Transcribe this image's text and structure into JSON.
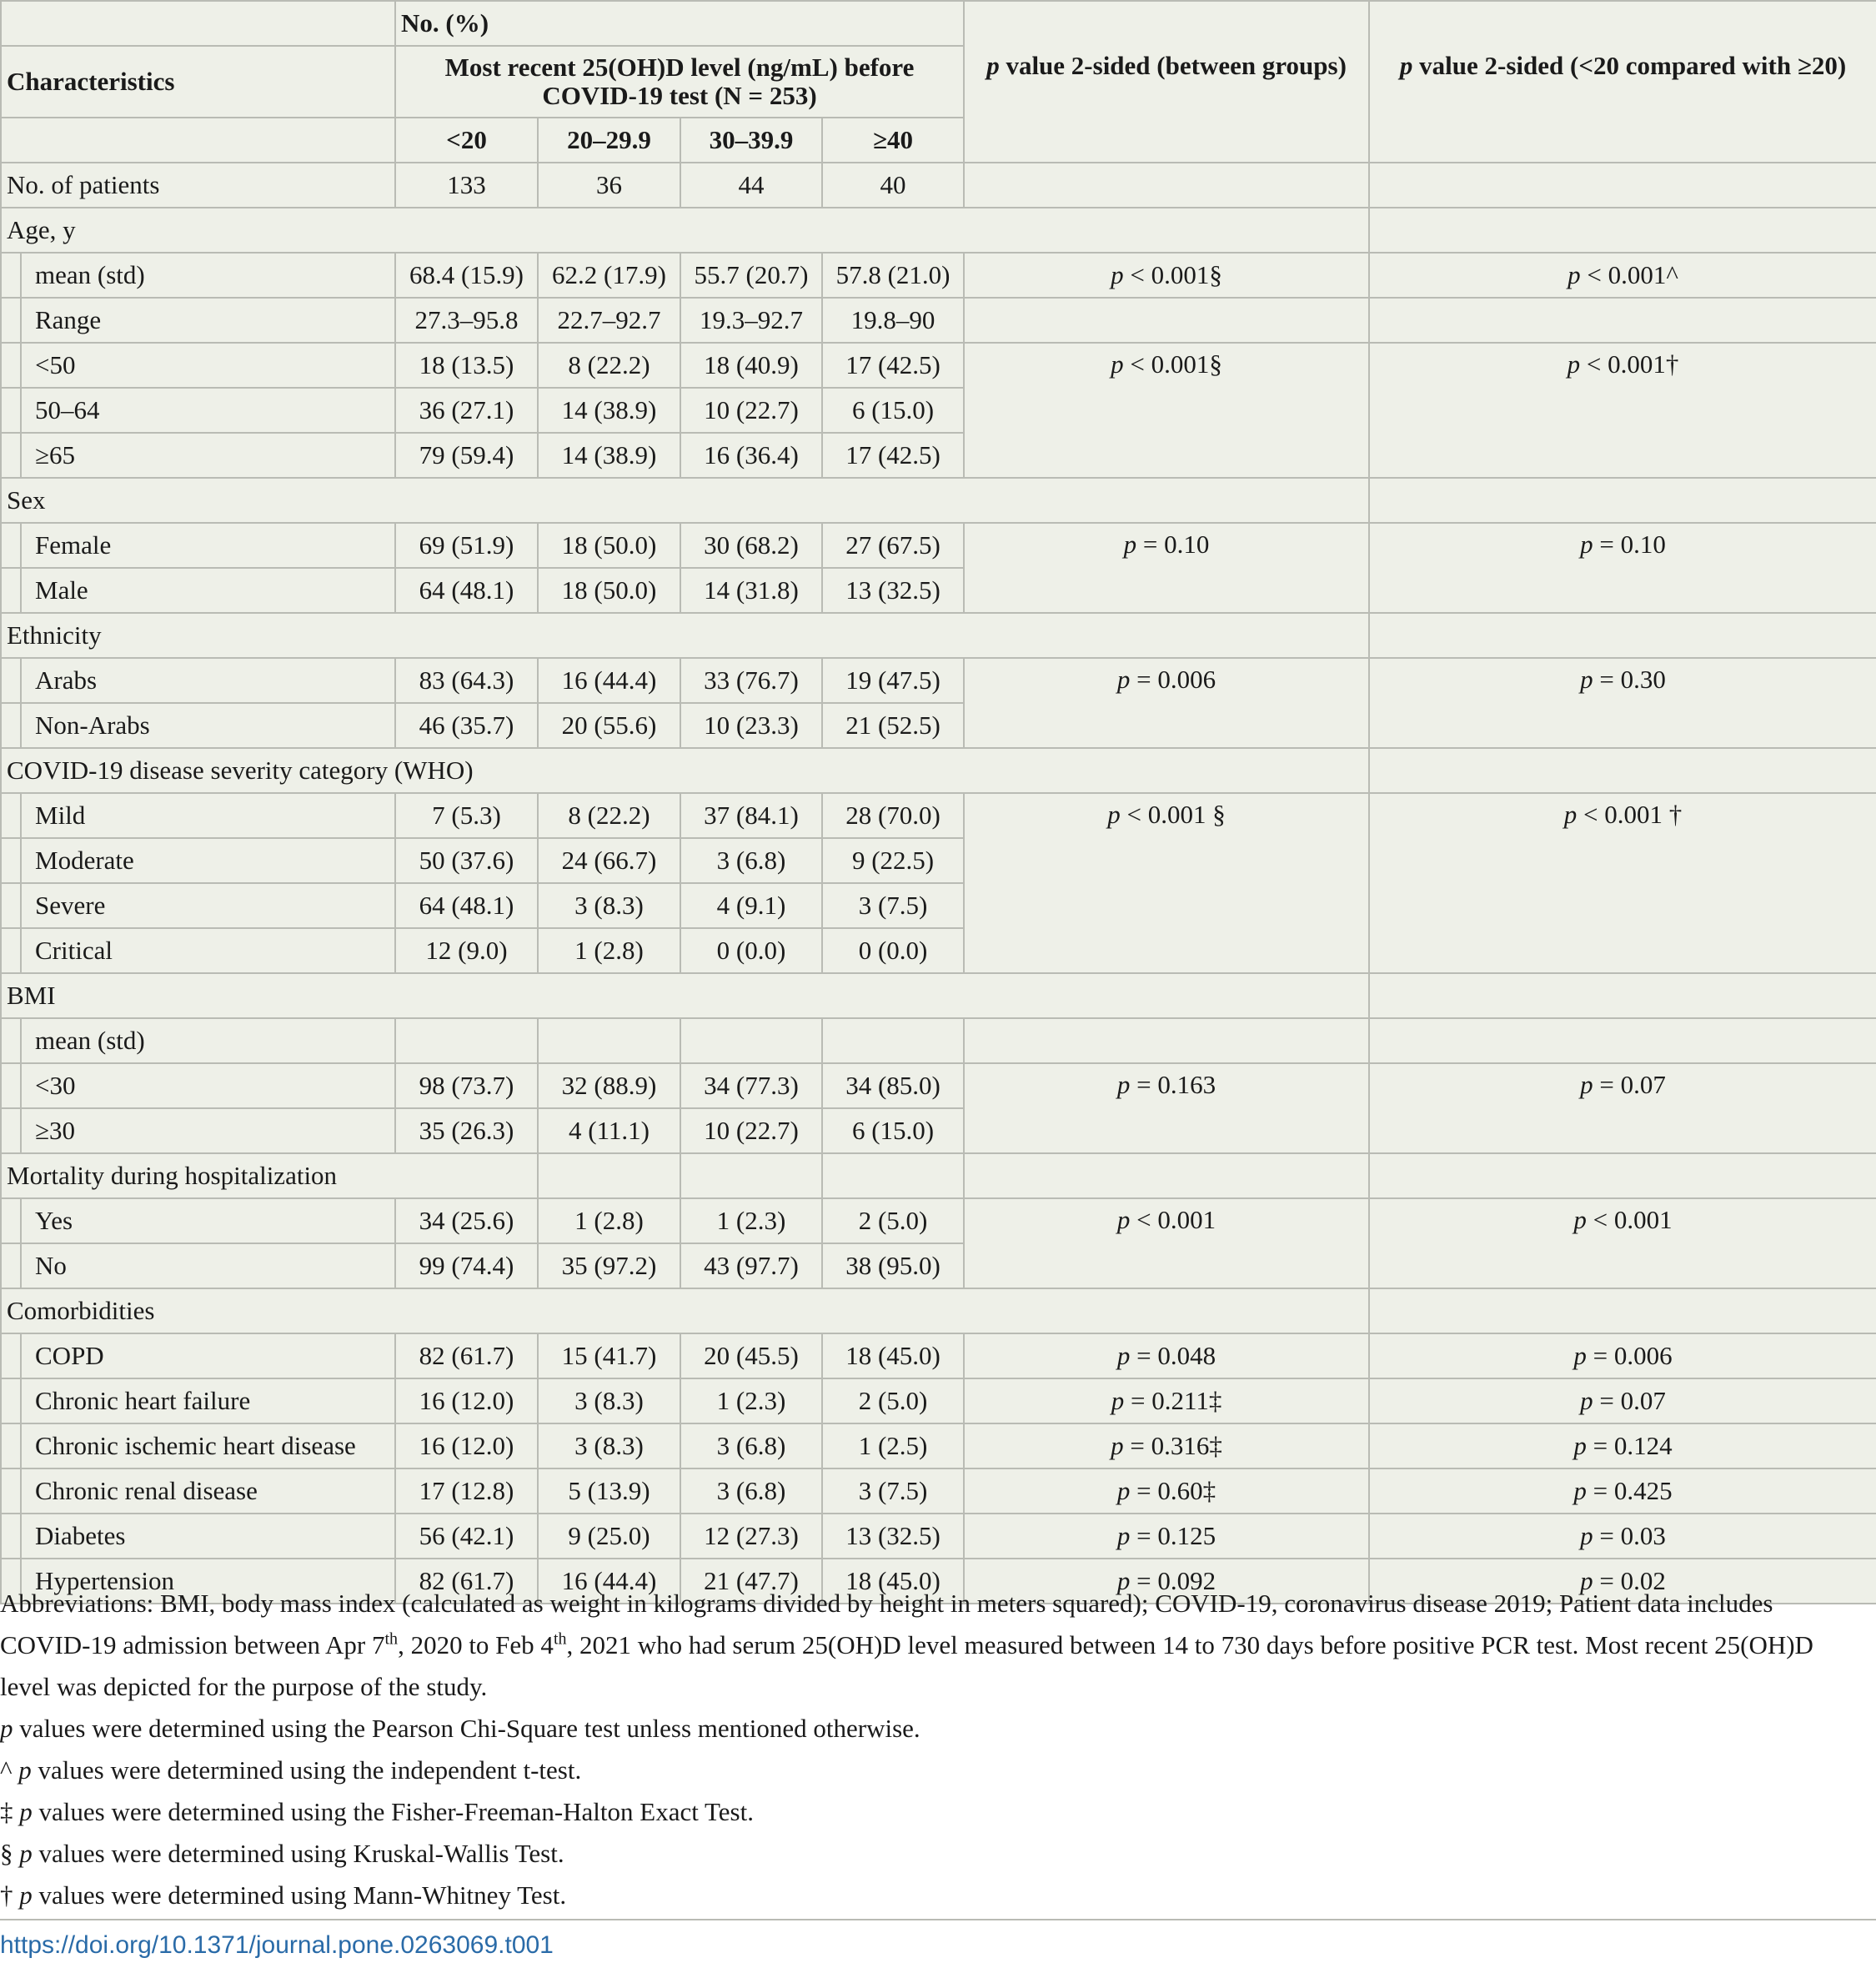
{
  "header": {
    "no_pct": "No. (%)",
    "characteristics": "Characteristics",
    "group_title": "Most recent 25(OH)D level (ng/mL) before COVID-19 test (N = 253)",
    "p_between_italic": "p",
    "p_between_rest": " value 2-sided (between groups)",
    "p_lt20_italic": "p",
    "p_lt20_rest": " value 2-sided (<20 compared with ≥20)",
    "levels": [
      "<20",
      "20–29.9",
      "30–39.9",
      "≥40"
    ]
  },
  "table": {
    "no_patients": {
      "label": "No. of patients",
      "values": [
        "133",
        "36",
        "44",
        "40"
      ]
    },
    "age": {
      "label": "Age, y",
      "rows": [
        {
          "label": "mean (std)",
          "values": [
            "68.4 (15.9)",
            "62.2 (17.9)",
            "55.7 (20.7)",
            "57.8 (21.0)"
          ]
        },
        {
          "label": "Range",
          "values": [
            "27.3–95.8",
            "22.7–92.7",
            "19.3–92.7",
            "19.8–90"
          ]
        },
        {
          "label": "<50",
          "values": [
            "18 (13.5)",
            "8 (22.2)",
            "18 (40.9)",
            "17 (42.5)"
          ]
        },
        {
          "label": "50–64",
          "values": [
            "36 (27.1)",
            "14 (38.9)",
            "10 (22.7)",
            "6 (15.0)"
          ]
        },
        {
          "label": "≥65",
          "values": [
            "79 (59.4)",
            "14 (38.9)",
            "16 (36.4)",
            "17 (42.5)"
          ]
        }
      ],
      "p_mean_between": "p < 0.001§",
      "p_mean_lt20": "p < 0.001^",
      "p_cat_between": "p < 0.001§",
      "p_cat_lt20": "p < 0.001†"
    },
    "sex": {
      "label": "Sex",
      "rows": [
        {
          "label": "Female",
          "values": [
            "69 (51.9)",
            "18 (50.0)",
            "30 (68.2)",
            "27 (67.5)"
          ]
        },
        {
          "label": "Male",
          "values": [
            "64 (48.1)",
            "18 (50.0)",
            "14 (31.8)",
            "13 (32.5)"
          ]
        }
      ],
      "p_between": "p = 0.10",
      "p_lt20": "p = 0.10"
    },
    "ethnicity": {
      "label": "Ethnicity",
      "rows": [
        {
          "label": "Arabs",
          "values": [
            "83 (64.3)",
            "16 (44.4)",
            "33 (76.7)",
            "19 (47.5)"
          ]
        },
        {
          "label": "Non-Arabs",
          "values": [
            "46 (35.7)",
            "20 (55.6)",
            "10 (23.3)",
            "21 (52.5)"
          ]
        }
      ],
      "p_between": "p = 0.006",
      "p_lt20": "p = 0.30"
    },
    "severity": {
      "label": "COVID-19 disease severity category (WHO)",
      "rows": [
        {
          "label": "Mild",
          "values": [
            "7 (5.3)",
            "8 (22.2)",
            "37 (84.1)",
            "28 (70.0)"
          ]
        },
        {
          "label": "Moderate",
          "values": [
            "50 (37.6)",
            "24 (66.7)",
            "3 (6.8)",
            "9 (22.5)"
          ]
        },
        {
          "label": "Severe",
          "values": [
            "64 (48.1)",
            "3 (8.3)",
            "4 (9.1)",
            "3 (7.5)"
          ]
        },
        {
          "label": "Critical",
          "values": [
            "12 (9.0)",
            "1 (2.8)",
            "0 (0.0)",
            "0 (0.0)"
          ]
        }
      ],
      "p_between": "p < 0.001 §",
      "p_lt20": "p < 0.001 †"
    },
    "bmi": {
      "label": "BMI",
      "mean_label": "mean (std)",
      "rows": [
        {
          "label": "<30",
          "values": [
            "98 (73.7)",
            "32 (88.9)",
            "34 (77.3)",
            "34 (85.0)"
          ]
        },
        {
          "label": "≥30",
          "values": [
            "35 (26.3)",
            "4 (11.1)",
            "10 (22.7)",
            "6 (15.0)"
          ]
        }
      ],
      "p_between": "p = 0.163",
      "p_lt20": "p = 0.07"
    },
    "mortality": {
      "label": "Mortality during hospitalization",
      "rows": [
        {
          "label": "Yes",
          "values": [
            "34 (25.6)",
            "1 (2.8)",
            "1 (2.3)",
            "2 (5.0)"
          ]
        },
        {
          "label": "No",
          "values": [
            "99 (74.4)",
            "35 (97.2)",
            "43 (97.7)",
            "38 (95.0)"
          ]
        }
      ],
      "p_between": "p < 0.001",
      "p_lt20": "p < 0.001"
    },
    "comorbidities": {
      "label": "Comorbidities",
      "rows": [
        {
          "label": "COPD",
          "values": [
            "82 (61.7)",
            "15 (41.7)",
            "20 (45.5)",
            "18 (45.0)"
          ],
          "p_between": "p = 0.048",
          "p_lt20": "p = 0.006"
        },
        {
          "label": "Chronic heart failure",
          "values": [
            "16 (12.0)",
            "3 (8.3)",
            "1 (2.3)",
            "2 (5.0)"
          ],
          "p_between": "p = 0.211‡",
          "p_lt20": "p = 0.07"
        },
        {
          "label": "Chronic ischemic heart disease",
          "values": [
            "16 (12.0)",
            "3 (8.3)",
            "3 (6.8)",
            "1 (2.5)"
          ],
          "p_between": "p = 0.316‡",
          "p_lt20": "p = 0.124"
        },
        {
          "label": "Chronic renal disease",
          "values": [
            "17 (12.8)",
            "5 (13.9)",
            "3 (6.8)",
            "3 (7.5)"
          ],
          "p_between": "p = 0.60‡",
          "p_lt20": "p = 0.425"
        },
        {
          "label": "Diabetes",
          "values": [
            "56 (42.1)",
            "9 (25.0)",
            "12 (27.3)",
            "13 (32.5)"
          ],
          "p_between": "p = 0.125",
          "p_lt20": "p = 0.03"
        },
        {
          "label": "Hypertension",
          "values": [
            "82 (61.7)",
            "16 (44.4)",
            "21 (47.7)",
            "18 (45.0)"
          ],
          "p_between": "p = 0.092",
          "p_lt20": "p = 0.02"
        }
      ]
    }
  },
  "notes": {
    "abbrev_1": "Abbreviations: BMI, body mass index (calculated as weight in kilograms divided by height in meters squared); COVID-19, coronavirus disease 2019; Patient data includes COVID-19 admission between Apr 7",
    "abbrev_sup1": "th",
    "abbrev_2": ", 2020 to Feb 4",
    "abbrev_sup2": "th",
    "abbrev_3": ", 2021 who had serum 25(OH)D level measured between 14 to 730 days before positive PCR test. Most recent 25(OH)D level was depicted for the purpose of the study.",
    "n1_p": "p",
    "n1": " values were determined using the Pearson Chi-Square test unless mentioned otherwise.",
    "n2_sym": "^ ",
    "n2_p": "p",
    "n2": " values were determined using the independent t-test.",
    "n3_sym": "‡ ",
    "n3_p": "p",
    "n3": " values were determined using the Fisher-Freeman-Halton Exact Test.",
    "n4_sym": "§ ",
    "n4_p": "p",
    "n4": " values were determined using Kruskal-Wallis Test.",
    "n5_sym": "† ",
    "n5_p": "p",
    "n5": " values were determined using Mann-Whitney Test."
  },
  "doi": "https://doi.org/10.1371/journal.pone.0263069.t001"
}
